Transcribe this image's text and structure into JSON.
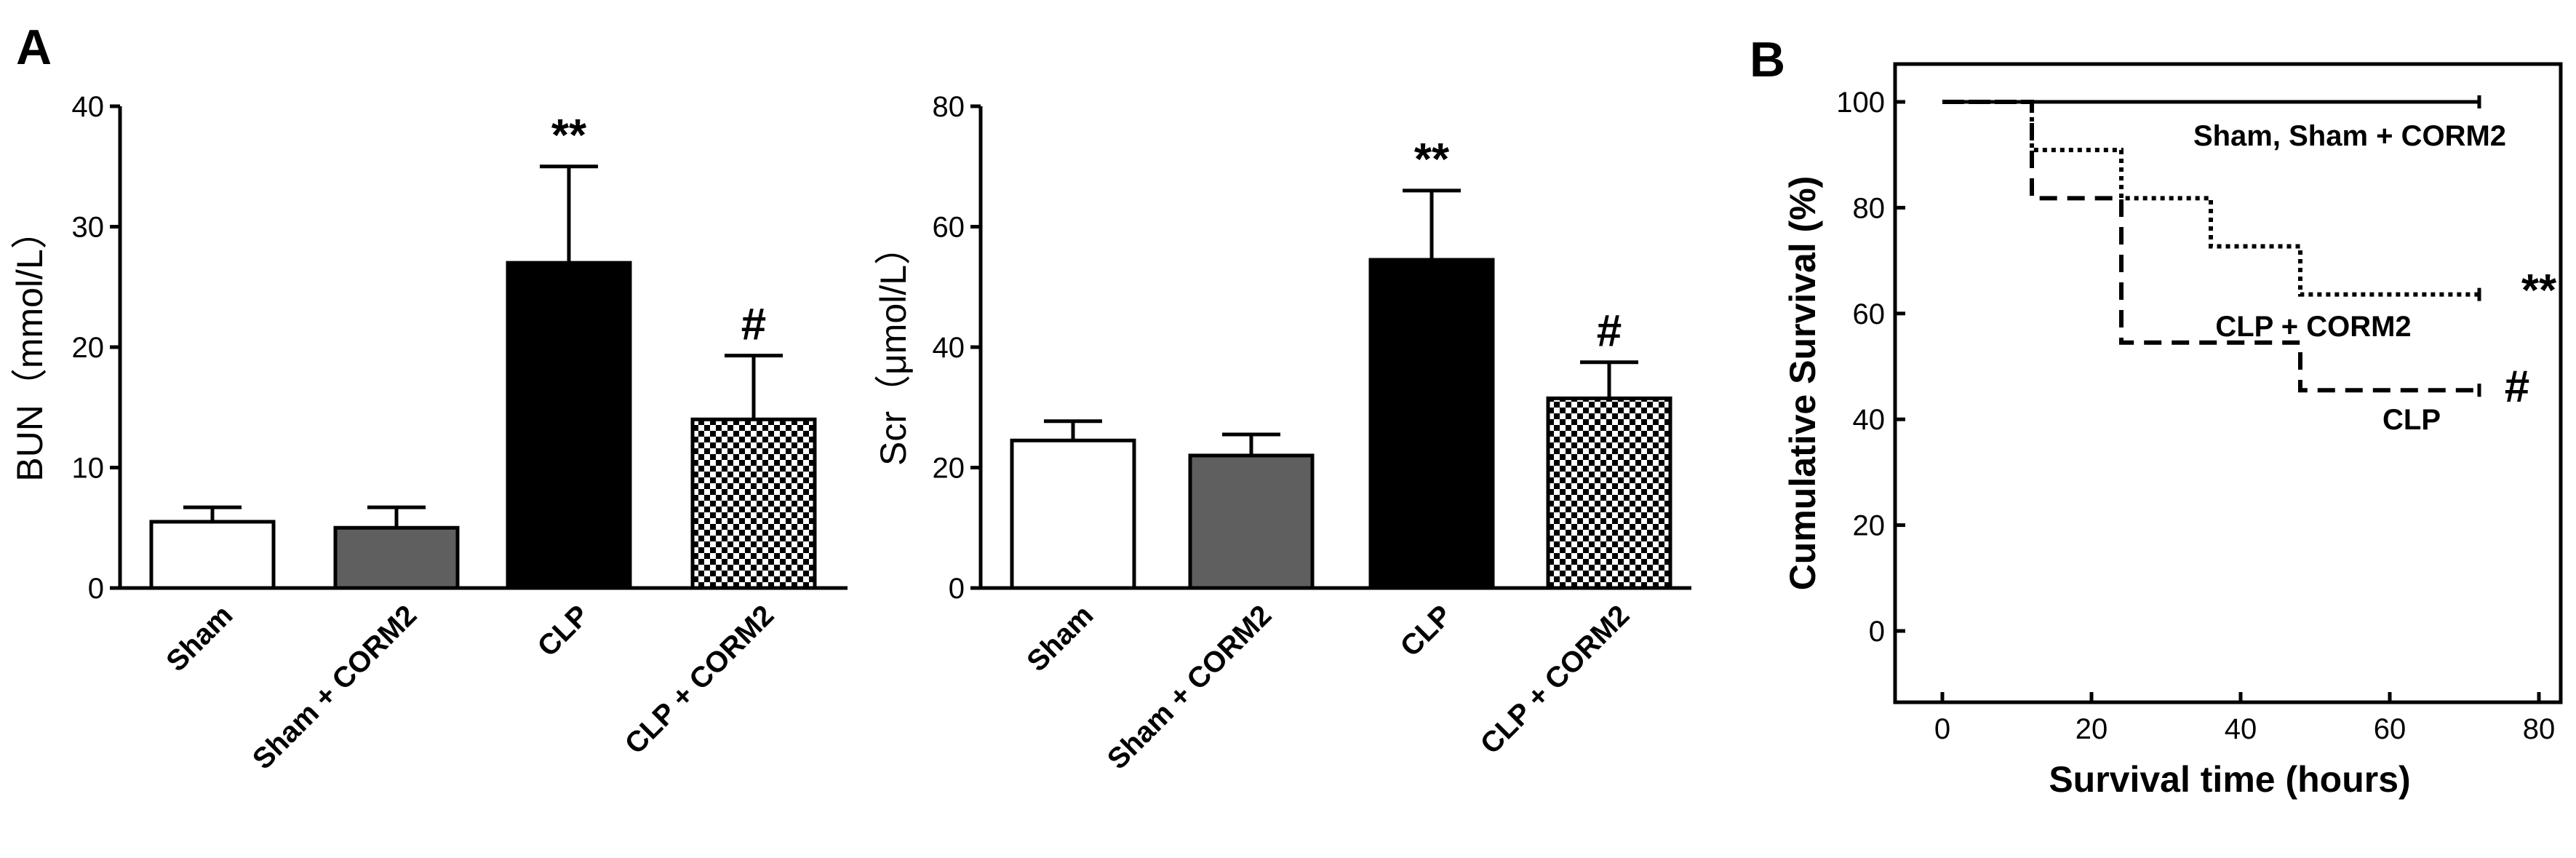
{
  "panel_a_label": "A",
  "panel_b_label": "B",
  "colors": {
    "sham": "#ffffff",
    "sham_corm2": "#5f5f5f",
    "clp": "#000000",
    "clp_corm2": "checkered"
  },
  "chart_data": [
    {
      "type": "bar",
      "categories": [
        "Sham",
        "Sham + CORM2",
        "CLP",
        "CLP + CORM2"
      ],
      "values": [
        5.5,
        5.0,
        27.0,
        14.0
      ],
      "errors": [
        1.2,
        1.7,
        8.0,
        5.3
      ],
      "annotations": [
        "",
        "",
        "**",
        "#"
      ],
      "ylabel": "BUN（mmol/L）",
      "ylim": [
        0,
        40
      ],
      "yticks": [
        0,
        10,
        20,
        30,
        40
      ]
    },
    {
      "type": "bar",
      "categories": [
        "Sham",
        "Sham + CORM2",
        "CLP",
        "CLP + CORM2"
      ],
      "values": [
        24.5,
        22.0,
        54.5,
        31.5
      ],
      "errors": [
        3.2,
        3.5,
        11.5,
        6.0
      ],
      "annotations": [
        "",
        "",
        "**",
        "#"
      ],
      "ylabel": "Scr（μmol/L）",
      "ylim": [
        0,
        80
      ],
      "yticks": [
        0,
        20,
        40,
        60,
        80
      ]
    },
    {
      "type": "line",
      "xlabel": "Survival time (hours)",
      "ylabel": "Cumulative  Survival (%)",
      "xlim": [
        0,
        80
      ],
      "ylim": [
        0,
        100
      ],
      "xticks": [
        0,
        20,
        40,
        60,
        80
      ],
      "yticks": [
        0,
        20,
        40,
        60,
        80,
        100
      ],
      "series": [
        {
          "name": "Sham, Sham + CORM2",
          "style": "solid",
          "steps": [
            [
              0,
              100
            ],
            [
              72,
              100
            ]
          ],
          "annotation": ""
        },
        {
          "name": "CLP + CORM2",
          "style": "dotted",
          "steps": [
            [
              0,
              100
            ],
            [
              12,
              100
            ],
            [
              12,
              90.9
            ],
            [
              24,
              90.9
            ],
            [
              24,
              81.8
            ],
            [
              36,
              81.8
            ],
            [
              36,
              72.7
            ],
            [
              48,
              72.7
            ],
            [
              48,
              63.6
            ],
            [
              72,
              63.6
            ]
          ],
          "annotation": "**"
        },
        {
          "name": "CLP",
          "style": "dashed",
          "steps": [
            [
              0,
              100
            ],
            [
              12,
              100
            ],
            [
              12,
              81.8
            ],
            [
              24,
              81.8
            ],
            [
              24,
              54.5
            ],
            [
              48,
              54.5
            ],
            [
              48,
              45.5
            ],
            [
              72,
              45.5
            ]
          ],
          "annotation": "#"
        }
      ]
    }
  ]
}
